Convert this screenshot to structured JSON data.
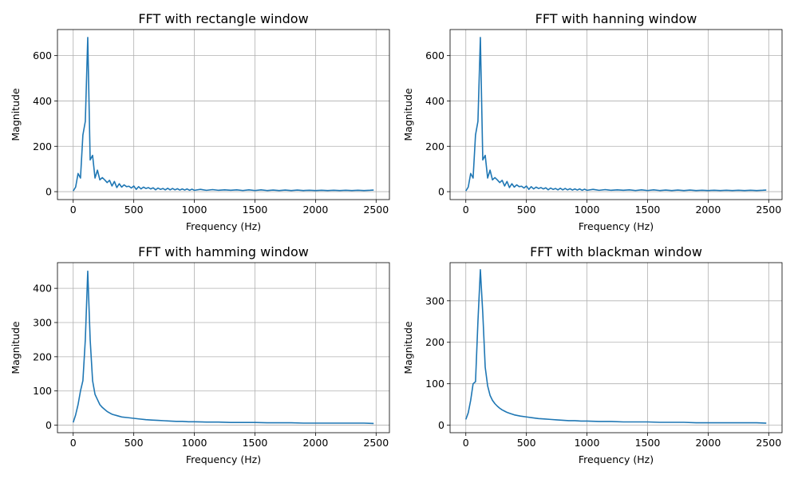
{
  "line_color": "#1f77b4",
  "chart_data": [
    {
      "type": "line",
      "title": "FFT with rectangle window",
      "xlabel": "Frequency (Hz)",
      "ylabel": "Magnitude",
      "xlim": [
        -130,
        2610
      ],
      "ylim": [
        -35,
        715
      ],
      "xticks": [
        0,
        500,
        1000,
        1500,
        2000,
        2500
      ],
      "yticks": [
        0,
        200,
        400,
        600
      ],
      "grid": true,
      "series": [
        {
          "x": [
            0,
            20,
            40,
            60,
            80,
            100,
            120,
            140,
            160,
            180,
            200,
            220,
            240,
            260,
            280,
            300,
            320,
            340,
            360,
            380,
            400,
            420,
            440,
            460,
            480,
            500,
            520,
            540,
            560,
            580,
            600,
            620,
            640,
            660,
            680,
            700,
            720,
            740,
            760,
            780,
            800,
            820,
            840,
            860,
            880,
            900,
            920,
            940,
            960,
            980,
            1000,
            1050,
            1100,
            1150,
            1200,
            1250,
            1300,
            1350,
            1400,
            1450,
            1500,
            1550,
            1600,
            1650,
            1700,
            1750,
            1800,
            1850,
            1900,
            1950,
            2000,
            2050,
            2100,
            2150,
            2200,
            2250,
            2300,
            2350,
            2400,
            2450,
            2480
          ],
          "y": [
            3,
            20,
            80,
            60,
            250,
            310,
            680,
            140,
            160,
            60,
            95,
            52,
            62,
            52,
            40,
            50,
            25,
            45,
            18,
            35,
            20,
            30,
            22,
            24,
            16,
            25,
            10,
            22,
            12,
            20,
            14,
            18,
            12,
            17,
            8,
            16,
            10,
            14,
            8,
            15,
            8,
            14,
            8,
            13,
            7,
            12,
            7,
            12,
            6,
            11,
            6,
            10,
            6,
            9,
            6,
            8,
            6,
            8,
            5,
            8,
            5,
            8,
            5,
            7,
            5,
            7,
            5,
            7,
            5,
            6,
            5,
            6,
            5,
            6,
            5,
            6,
            5,
            6,
            5,
            6,
            7
          ]
        }
      ]
    },
    {
      "type": "line",
      "title": "FFT with hanning window",
      "xlabel": "Frequency (Hz)",
      "ylabel": "Magnitude",
      "xlim": [
        -130,
        2610
      ],
      "ylim": [
        -35,
        715
      ],
      "xticks": [
        0,
        500,
        1000,
        1500,
        2000,
        2500
      ],
      "yticks": [
        0,
        200,
        400,
        600
      ],
      "grid": true,
      "series": [
        {
          "x": [
            0,
            20,
            40,
            60,
            80,
            100,
            120,
            140,
            160,
            180,
            200,
            220,
            240,
            260,
            280,
            300,
            320,
            340,
            360,
            380,
            400,
            420,
            440,
            460,
            480,
            500,
            520,
            540,
            560,
            580,
            600,
            620,
            640,
            660,
            680,
            700,
            720,
            740,
            760,
            780,
            800,
            820,
            840,
            860,
            880,
            900,
            920,
            940,
            960,
            980,
            1000,
            1050,
            1100,
            1150,
            1200,
            1250,
            1300,
            1350,
            1400,
            1450,
            1500,
            1550,
            1600,
            1650,
            1700,
            1750,
            1800,
            1850,
            1900,
            1950,
            2000,
            2050,
            2100,
            2150,
            2200,
            2250,
            2300,
            2350,
            2400,
            2450,
            2480
          ],
          "y": [
            3,
            20,
            80,
            60,
            250,
            310,
            680,
            140,
            160,
            60,
            95,
            52,
            62,
            52,
            40,
            50,
            25,
            45,
            18,
            35,
            20,
            30,
            22,
            24,
            16,
            25,
            10,
            22,
            12,
            20,
            14,
            18,
            12,
            17,
            8,
            16,
            10,
            14,
            8,
            15,
            8,
            14,
            8,
            13,
            7,
            12,
            7,
            12,
            6,
            11,
            6,
            10,
            6,
            9,
            6,
            8,
            6,
            8,
            5,
            8,
            5,
            8,
            5,
            7,
            5,
            7,
            5,
            7,
            5,
            6,
            5,
            6,
            5,
            6,
            5,
            6,
            5,
            6,
            5,
            6,
            7
          ]
        }
      ]
    },
    {
      "type": "line",
      "title": "FFT with hamming window",
      "xlabel": "Frequency (Hz)",
      "ylabel": "Magnitude",
      "xlim": [
        -130,
        2610
      ],
      "ylim": [
        -22,
        475
      ],
      "xticks": [
        0,
        500,
        1000,
        1500,
        2000,
        2500
      ],
      "yticks": [
        0,
        100,
        200,
        300,
        400
      ],
      "grid": true,
      "series": [
        {
          "x": [
            0,
            20,
            40,
            60,
            80,
            100,
            120,
            140,
            160,
            180,
            200,
            220,
            240,
            260,
            280,
            300,
            320,
            340,
            360,
            380,
            400,
            450,
            500,
            550,
            600,
            650,
            700,
            750,
            800,
            850,
            900,
            950,
            1000,
            1100,
            1200,
            1300,
            1400,
            1500,
            1600,
            1700,
            1800,
            1900,
            2000,
            2100,
            2200,
            2300,
            2400,
            2480
          ],
          "y": [
            8,
            30,
            60,
            100,
            130,
            250,
            450,
            250,
            130,
            90,
            75,
            60,
            52,
            46,
            40,
            36,
            32,
            30,
            28,
            26,
            24,
            22,
            20,
            18,
            16,
            15,
            14,
            13,
            12,
            11,
            11,
            10,
            10,
            9,
            9,
            8,
            8,
            8,
            7,
            7,
            7,
            6,
            6,
            6,
            6,
            6,
            6,
            5
          ]
        }
      ]
    },
    {
      "type": "line",
      "title": "FFT with blackman window",
      "xlabel": "Frequency (Hz)",
      "ylabel": "Magnitude",
      "xlim": [
        -130,
        2610
      ],
      "ylim": [
        -18,
        392
      ],
      "xticks": [
        0,
        500,
        1000,
        1500,
        2000,
        2500
      ],
      "yticks": [
        0,
        100,
        200,
        300
      ],
      "grid": true,
      "series": [
        {
          "x": [
            0,
            20,
            40,
            60,
            80,
            100,
            120,
            140,
            160,
            180,
            200,
            220,
            240,
            260,
            280,
            300,
            320,
            340,
            360,
            380,
            400,
            450,
            500,
            550,
            600,
            650,
            700,
            750,
            800,
            850,
            900,
            950,
            1000,
            1100,
            1200,
            1300,
            1400,
            1500,
            1600,
            1700,
            1800,
            1900,
            2000,
            2100,
            2200,
            2300,
            2400,
            2480
          ],
          "y": [
            14,
            30,
            60,
            100,
            105,
            250,
            375,
            270,
            140,
            95,
            72,
            60,
            52,
            46,
            41,
            37,
            34,
            31,
            29,
            27,
            25,
            22,
            20,
            18,
            16,
            15,
            14,
            13,
            12,
            11,
            11,
            10,
            10,
            9,
            9,
            8,
            8,
            8,
            7,
            7,
            7,
            6,
            6,
            6,
            6,
            6,
            6,
            5
          ]
        }
      ]
    }
  ]
}
